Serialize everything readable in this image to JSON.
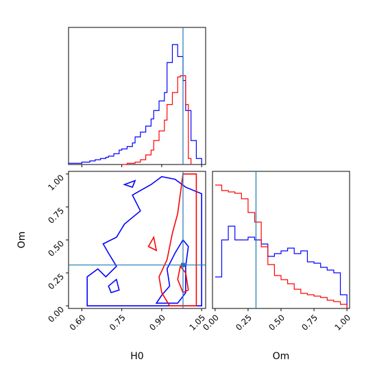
{
  "chart_data": [
    {
      "type": "histogram",
      "panel": "H0 marginal",
      "xlim": [
        0.55,
        1.065
      ],
      "truth": 0.98,
      "truth_color": "#1f77b4",
      "series": [
        {
          "color": "#0000ff",
          "x": [
            0.55,
            0.55,
            0.6,
            0.63,
            0.65,
            0.67,
            0.69,
            0.7,
            0.72,
            0.74,
            0.75,
            0.77,
            0.79,
            0.8,
            0.82,
            0.84,
            0.86,
            0.87,
            0.89,
            0.91,
            0.92,
            0.94,
            0.96,
            0.98,
            0.99,
            1.01,
            1.03,
            1.05,
            1.05
          ],
          "y": [
            0,
            0.01,
            0.02,
            0.03,
            0.04,
            0.05,
            0.06,
            0.07,
            0.09,
            0.12,
            0.13,
            0.15,
            0.18,
            0.23,
            0.27,
            0.32,
            0.38,
            0.45,
            0.53,
            0.6,
            0.85,
            1.0,
            0.9,
            0.7,
            0.45,
            0.2,
            0.05,
            0.05,
            0
          ]
        },
        {
          "color": "#ff0000",
          "x": [
            0.75,
            0.77,
            0.8,
            0.82,
            0.84,
            0.86,
            0.87,
            0.89,
            0.91,
            0.92,
            0.94,
            0.96,
            0.97,
            0.99,
            1.0,
            1.01
          ],
          "y": [
            0,
            0.01,
            0.02,
            0.04,
            0.08,
            0.12,
            0.2,
            0.28,
            0.37,
            0.5,
            0.6,
            0.73,
            0.74,
            0.5,
            0.05,
            0
          ]
        }
      ]
    },
    {
      "type": "contour",
      "panel": "H0 vs Om",
      "xlabel": "H0",
      "ylabel": "Om",
      "xlim": [
        0.55,
        1.065
      ],
      "ylim": [
        -0.02,
        1.02
      ],
      "xticks": [
        "0.60",
        "0.75",
        "0.90",
        "1.05"
      ],
      "yticks": [
        "0.00",
        "0.25",
        "0.50",
        "0.75",
        "1.00"
      ],
      "truth": {
        "x": 0.98,
        "y": 0.31
      },
      "truth_color": "#1f77b4",
      "contours": [
        {
          "color": "#0000ff",
          "level": "outer",
          "points": [
            [
              0.62,
              0.0
            ],
            [
              0.62,
              0.22
            ],
            [
              0.66,
              0.28
            ],
            [
              0.69,
              0.22
            ],
            [
              0.73,
              0.3
            ],
            [
              0.7,
              0.4
            ],
            [
              0.68,
              0.47
            ],
            [
              0.73,
              0.52
            ],
            [
              0.76,
              0.62
            ],
            [
              0.82,
              0.72
            ],
            [
              0.79,
              0.84
            ],
            [
              0.86,
              0.92
            ],
            [
              0.9,
              0.98
            ],
            [
              0.95,
              0.96
            ],
            [
              0.99,
              0.9
            ],
            [
              1.05,
              0.85
            ],
            [
              1.05,
              0.0
            ]
          ]
        },
        {
          "color": "#0000ff",
          "level": "inner",
          "points": [
            [
              0.88,
              0.02
            ],
            [
              0.9,
              0.08
            ],
            [
              0.93,
              0.15
            ],
            [
              0.92,
              0.28
            ],
            [
              0.95,
              0.4
            ],
            [
              0.98,
              0.5
            ],
            [
              1.0,
              0.45
            ],
            [
              0.99,
              0.3
            ],
            [
              0.99,
              0.1
            ],
            [
              0.96,
              0.02
            ]
          ]
        },
        {
          "color": "#ff0000",
          "level": "outer",
          "points": [
            [
              0.93,
              0.0
            ],
            [
              0.9,
              0.1
            ],
            [
              0.89,
              0.22
            ],
            [
              0.92,
              0.35
            ],
            [
              0.94,
              0.55
            ],
            [
              0.96,
              0.7
            ],
            [
              0.97,
              0.85
            ],
            [
              0.98,
              1.0
            ],
            [
              1.03,
              1.0
            ],
            [
              1.03,
              0.0
            ]
          ]
        },
        {
          "color": "#ff0000",
          "level": "inner",
          "points": [
            [
              0.98,
              0.1
            ],
            [
              0.96,
              0.2
            ],
            [
              0.97,
              0.3
            ],
            [
              0.99,
              0.25
            ],
            [
              1.0,
              0.12
            ]
          ]
        },
        {
          "color": "#0000ff",
          "level": "outer",
          "points": [
            [
              0.7,
              0.15
            ],
            [
              0.73,
              0.2
            ],
            [
              0.74,
              0.12
            ],
            [
              0.71,
              0.1
            ]
          ]
        },
        {
          "color": "#0000ff",
          "level": "outer",
          "points": [
            [
              0.76,
              0.92
            ],
            [
              0.8,
              0.95
            ],
            [
              0.79,
              0.9
            ]
          ]
        },
        {
          "color": "#ff0000",
          "level": "inner",
          "points": [
            [
              0.85,
              0.45
            ],
            [
              0.87,
              0.52
            ],
            [
              0.88,
              0.42
            ]
          ]
        }
      ]
    },
    {
      "type": "histogram",
      "panel": "Om marginal",
      "xlabel": "Om",
      "xlim": [
        -0.02,
        1.02
      ],
      "xticks": [
        "0.00",
        "0.25",
        "0.50",
        "0.75",
        "1.00"
      ],
      "truth": 0.31,
      "truth_color": "#1f77b4",
      "series": [
        {
          "color": "#0000ff",
          "x": [
            0.0,
            0.05,
            0.1,
            0.15,
            0.2,
            0.25,
            0.3,
            0.35,
            0.4,
            0.45,
            0.5,
            0.55,
            0.6,
            0.65,
            0.7,
            0.75,
            0.8,
            0.85,
            0.9,
            0.95,
            1.0
          ],
          "y": [
            0.23,
            0.5,
            0.6,
            0.5,
            0.5,
            0.52,
            0.5,
            0.47,
            0.38,
            0.4,
            0.42,
            0.44,
            0.4,
            0.42,
            0.34,
            0.33,
            0.3,
            0.28,
            0.26,
            0.1,
            0.0
          ]
        },
        {
          "color": "#ff0000",
          "x": [
            0.0,
            0.05,
            0.1,
            0.15,
            0.2,
            0.25,
            0.3,
            0.35,
            0.4,
            0.45,
            0.5,
            0.55,
            0.6,
            0.65,
            0.7,
            0.75,
            0.8,
            0.85,
            0.9,
            0.95,
            1.0
          ],
          "y": [
            0.9,
            0.86,
            0.85,
            0.84,
            0.8,
            0.7,
            0.63,
            0.45,
            0.32,
            0.24,
            0.21,
            0.18,
            0.14,
            0.11,
            0.1,
            0.09,
            0.08,
            0.06,
            0.05,
            0.03,
            0.0
          ]
        }
      ]
    }
  ]
}
